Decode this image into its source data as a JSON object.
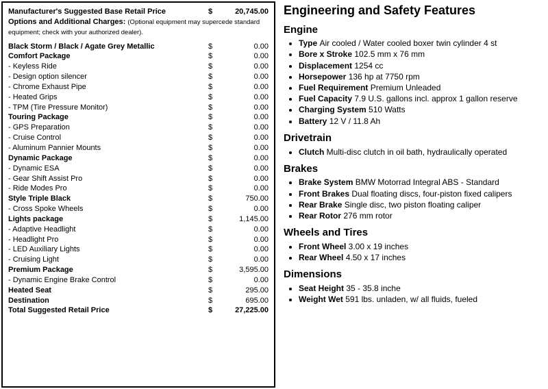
{
  "pricing": {
    "msrp_label": "Manufacturer's Suggested Base Retail Price",
    "msrp_value": "20,745.00",
    "options_label": "Options and Additional Charges:",
    "options_note": "(Optional equipment may supercede standard equipment; check with your authorized dealer).",
    "currency": "$",
    "items": [
      {
        "label": "Black Storm / Black / Agate Grey Metallic",
        "value": "0.00",
        "bold": true
      },
      {
        "label": "Comfort Package",
        "value": "0.00",
        "bold": true
      },
      {
        "label": "- Keyless Ride",
        "value": "0.00"
      },
      {
        "label": "- Design option silencer",
        "value": "0.00"
      },
      {
        "label": "- Chrome Exhaust Pipe",
        "value": "0.00"
      },
      {
        "label": "- Heated Grips",
        "value": "0.00"
      },
      {
        "label": "- TPM (Tire Pressure Monitor)",
        "value": "0.00"
      },
      {
        "label": "Touring Package",
        "value": "0.00",
        "bold": true
      },
      {
        "label": "- GPS Preparation",
        "value": "0.00"
      },
      {
        "label": "- Cruise Control",
        "value": "0.00"
      },
      {
        "label": "- Aluminum Pannier Mounts",
        "value": "0.00"
      },
      {
        "label": "Dynamic Package",
        "value": "0.00",
        "bold": true
      },
      {
        "label": "- Dynamic ESA",
        "value": "0.00"
      },
      {
        "label": "- Gear Shift Assist Pro",
        "value": "0.00"
      },
      {
        "label": "- Ride Modes Pro",
        "value": "0.00"
      },
      {
        "label": "Style Triple Black",
        "value": "750.00",
        "bold": true
      },
      {
        "label": "- Cross Spoke Wheels",
        "value": "0.00"
      },
      {
        "label": "Lights package",
        "value": "1,145.00",
        "bold": true
      },
      {
        "label": "- Adaptive Headlight",
        "value": "0.00"
      },
      {
        "label": "- Headlight Pro",
        "value": "0.00"
      },
      {
        "label": "- LED Auxiliary Lights",
        "value": "0.00"
      },
      {
        "label": "- Cruising Light",
        "value": "0.00"
      },
      {
        "label": "Premium Package",
        "value": "3,595.00",
        "bold": true
      },
      {
        "label": "- Dynamic Engine Brake Control",
        "value": "0.00"
      },
      {
        "label": "Heated Seat",
        "value": "295.00",
        "bold": true
      },
      {
        "label": "Destination",
        "value": "695.00",
        "bold": true
      }
    ],
    "total_label": "Total Suggested Retail Price",
    "total_value": "27,225.00"
  },
  "features": {
    "title": "Engineering and Safety Features",
    "sections": [
      {
        "heading": "Engine",
        "specs": [
          {
            "name": "Type",
            "value": "Air cooled / Water cooled boxer twin cylinder 4 st"
          },
          {
            "name": "Bore x Stroke",
            "value": "102.5 mm x 76 mm"
          },
          {
            "name": "Displacement",
            "value": "1254 cc"
          },
          {
            "name": "Horsepower",
            "value": "136 hp at 7750 rpm"
          },
          {
            "name": "Fuel Requirement",
            "value": "Premium Unleaded"
          },
          {
            "name": "Fuel Capacity",
            "value": "7.9 U.S. gallons incl. approx 1 gallon reserve"
          },
          {
            "name": "Charging System",
            "value": "510 Watts"
          },
          {
            "name": "Battery",
            "value": "12 V / 11.8 Ah"
          }
        ]
      },
      {
        "heading": "Drivetrain",
        "specs": [
          {
            "name": "Clutch",
            "value": "Multi-disc clutch in oil bath, hydraulically operated"
          }
        ]
      },
      {
        "heading": "Brakes",
        "specs": [
          {
            "name": "Brake System",
            "value": "BMW Motorrad Integral ABS - Standard"
          },
          {
            "name": "Front Brakes",
            "value": "Dual floating discs, four-piston fixed calipers"
          },
          {
            "name": "Rear Brake",
            "value": "Single disc, two piston floating caliper"
          },
          {
            "name": "Rear Rotor",
            "value": "276 mm rotor"
          }
        ]
      },
      {
        "heading": "Wheels and Tires",
        "specs": [
          {
            "name": "Front Wheel",
            "value": "3.00 x 19 inches"
          },
          {
            "name": "Rear Wheel",
            "value": "4.50 x 17 inches"
          }
        ]
      },
      {
        "heading": "Dimensions",
        "specs": [
          {
            "name": "Seat Height",
            "value": "35 - 35.8 inche"
          },
          {
            "name": "Weight Wet",
            "value": "591 lbs. unladen, w/ all fluids, fueled"
          }
        ]
      }
    ]
  }
}
